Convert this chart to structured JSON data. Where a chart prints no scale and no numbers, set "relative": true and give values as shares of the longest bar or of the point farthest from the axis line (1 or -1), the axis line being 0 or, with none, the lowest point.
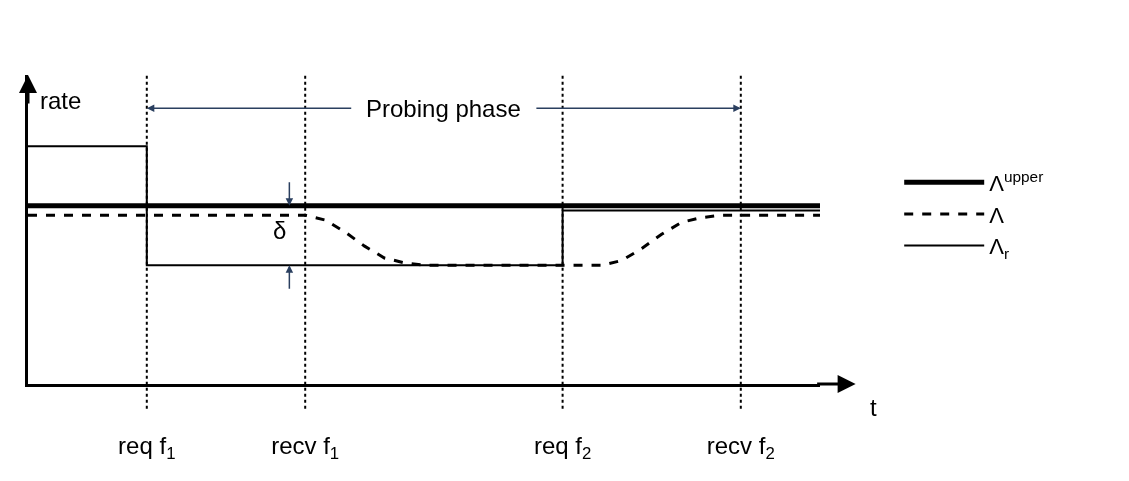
{
  "chart_data": {
    "type": "line",
    "relative": true,
    "xlabel": "t",
    "ylabel": "rate",
    "categories": [
      null,
      null,
      null,
      null,
      null,
      null,
      "req f$_{1}$",
      null,
      null,
      null,
      null,
      null,
      null,
      null,
      "recv f$_{1}$",
      null,
      null,
      null,
      null,
      null,
      null,
      null,
      null,
      null,
      null,
      null,
      null,
      "req f$_{2}$",
      null,
      null,
      null,
      null,
      null,
      null,
      null,
      null,
      "recv f$_{2}$",
      null,
      null,
      null,
      null
    ],
    "series": [
      {
        "name": "Λ$^{upper}$",
        "color": "#000000",
        "line_style": "solid",
        "values": [
          0.75,
          0.75,
          0.75,
          0.75,
          0.75,
          0.75,
          0.75,
          0.75,
          0.75,
          0.75,
          0.75,
          0.75,
          0.75,
          0.75,
          0.75,
          0.75,
          0.75,
          0.75,
          0.75,
          0.75,
          0.75,
          0.75,
          0.75,
          0.75,
          0.75,
          0.75,
          0.75,
          0.75,
          0.75,
          0.75,
          0.75,
          0.75,
          0.75,
          0.75,
          0.75,
          0.75,
          0.75,
          0.75,
          0.75,
          0.75,
          0.75
        ]
      },
      {
        "name": "Λ",
        "color": "#000000",
        "line_style": "dashed",
        "values": [
          0.71,
          0.71,
          0.71,
          0.71,
          0.71,
          0.71,
          0.71,
          0.71,
          0.71,
          0.71,
          0.71,
          0.71,
          0.71,
          0.71,
          0.71,
          0.69,
          0.64,
          0.58,
          0.53,
          0.51,
          0.5,
          0.5,
          0.5,
          0.5,
          0.5,
          0.5,
          0.5,
          0.5,
          0.5,
          0.5,
          0.52,
          0.57,
          0.63,
          0.68,
          0.7,
          0.71,
          0.71,
          0.71,
          0.71,
          0.71,
          0.71
        ]
      },
      {
        "name": "Λ$_{r}$",
        "color": "#000000",
        "type": "step",
        "line_style": "solid",
        "values": [
          1,
          1,
          1,
          1,
          1,
          1,
          0.5,
          0.5,
          0.5,
          0.5,
          0.5,
          0.5,
          0.5,
          0.5,
          0.5,
          0.5,
          0.5,
          0.5,
          0.5,
          0.5,
          0.5,
          0.5,
          0.5,
          0.5,
          0.5,
          0.5,
          0.5,
          0.73,
          0.73,
          0.73,
          0.73,
          0.73,
          0.73,
          0.73,
          0.73,
          0.73,
          0.73,
          0.73,
          0.73,
          0.73,
          0.73
        ]
      }
    ],
    "ref_lines": [
      {
        "axis": "x",
        "value": "req f$_{1}$",
        "line_style": "dotted"
      },
      {
        "axis": "x",
        "value": "recv f$_{1}$",
        "line_style": "dotted"
      },
      {
        "axis": "x",
        "value": "req f$_{2}$",
        "line_style": "dotted"
      },
      {
        "axis": "x",
        "value": "recv f$_{2}$",
        "line_style": "dotted"
      }
    ],
    "annotations": [
      "Probing phase",
      "δ"
    ],
    "legend": "right",
    "marker": "none"
  }
}
